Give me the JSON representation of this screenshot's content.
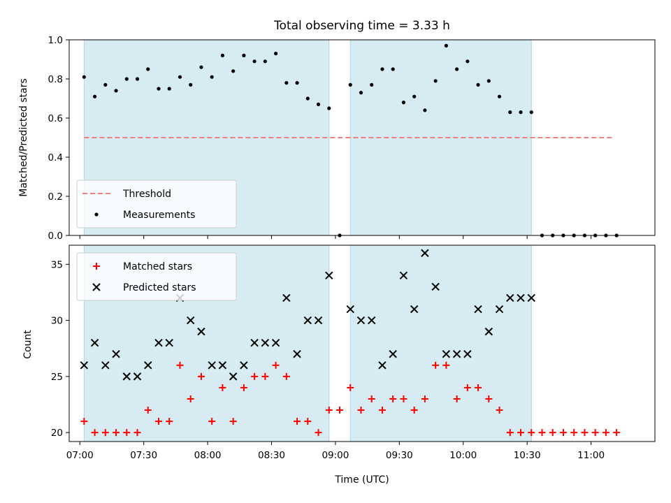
{
  "chart_data": {
    "type": "scatter",
    "title": "Total observing time = 3.33 h",
    "xlabel": "Time (UTC)",
    "x_ticks": [
      "07:00",
      "07:30",
      "08:00",
      "08:30",
      "09:00",
      "09:30",
      "10:00",
      "10:30",
      "11:00"
    ],
    "x_range_minutes": [
      -5,
      270
    ],
    "shaded_intervals": [
      [
        "07:02",
        "08:57"
      ],
      [
        "09:07",
        "10:32"
      ]
    ],
    "times": [
      "07:02",
      "07:07",
      "07:12",
      "07:17",
      "07:22",
      "07:27",
      "07:32",
      "07:37",
      "07:42",
      "07:47",
      "07:52",
      "07:57",
      "08:02",
      "08:07",
      "08:12",
      "08:17",
      "08:22",
      "08:27",
      "08:32",
      "08:37",
      "08:42",
      "08:47",
      "08:52",
      "08:57",
      "09:02",
      "09:07",
      "09:12",
      "09:17",
      "09:22",
      "09:27",
      "09:32",
      "09:37",
      "09:42",
      "09:47",
      "09:52",
      "09:57",
      "10:02",
      "10:07",
      "10:12",
      "10:17",
      "10:22",
      "10:27",
      "10:32",
      "10:37",
      "10:42",
      "10:47",
      "10:52",
      "10:57",
      "11:02",
      "11:07",
      "11:12"
    ],
    "panels": [
      {
        "ylabel": "Matched/Predicted stars",
        "ylim": [
          0,
          1.0
        ],
        "y_ticks": [
          "0.0",
          "0.2",
          "0.4",
          "0.6",
          "0.8",
          "1.0"
        ],
        "threshold": {
          "name": "Threshold",
          "value": 0.5,
          "color": "#f08080",
          "x_range": [
            "07:02",
            "11:10"
          ]
        },
        "series": [
          {
            "name": "Measurements",
            "marker": "dot",
            "color": "#000000",
            "values": [
              0.81,
              0.71,
              0.77,
              0.74,
              0.8,
              0.8,
              0.85,
              0.75,
              0.75,
              0.81,
              0.77,
              0.86,
              0.81,
              0.92,
              0.84,
              0.92,
              0.89,
              0.89,
              0.93,
              0.78,
              0.78,
              0.7,
              0.67,
              0.65,
              0.0,
              0.77,
              0.73,
              0.77,
              0.85,
              0.85,
              0.68,
              0.71,
              0.64,
              0.79,
              0.97,
              0.85,
              0.89,
              0.77,
              0.79,
              0.71,
              0.63,
              0.63,
              0.63,
              0.0,
              0.0,
              0.0,
              0.0,
              0.0,
              0.0,
              0.0,
              0.0
            ]
          }
        ],
        "legend_position": "lower-left"
      },
      {
        "ylabel": "Count",
        "ylim": [
          19.2,
          36.7
        ],
        "y_ticks": [
          "20",
          "25",
          "30",
          "35"
        ],
        "series": [
          {
            "name": "Matched stars",
            "marker": "plus",
            "color": "#ff0000",
            "values": [
              21,
              20,
              20,
              20,
              20,
              20,
              22,
              21,
              21,
              26,
              23,
              25,
              21,
              24,
              21,
              24,
              25,
              25,
              26,
              25,
              21,
              21,
              20,
              22,
              22,
              24,
              22,
              23,
              22,
              23,
              23,
              22,
              23,
              26,
              26,
              23,
              24,
              24,
              23,
              22,
              20,
              20,
              20,
              20,
              20,
              20,
              20,
              20,
              20,
              20,
              20
            ]
          },
          {
            "name": "Predicted stars",
            "marker": "x",
            "color": "#000000",
            "values": [
              26,
              28,
              26,
              27,
              25,
              25,
              26,
              28,
              28,
              32,
              30,
              29,
              26,
              26,
              25,
              26,
              28,
              28,
              28,
              32,
              27,
              30,
              30,
              34,
              null,
              31,
              30,
              30,
              26,
              27,
              34,
              31,
              36,
              33,
              27,
              27,
              27,
              31,
              29,
              31,
              32,
              32,
              32,
              null,
              null,
              null,
              null,
              null,
              null,
              null,
              null
            ]
          }
        ],
        "legend_position": "upper-left"
      }
    ]
  }
}
